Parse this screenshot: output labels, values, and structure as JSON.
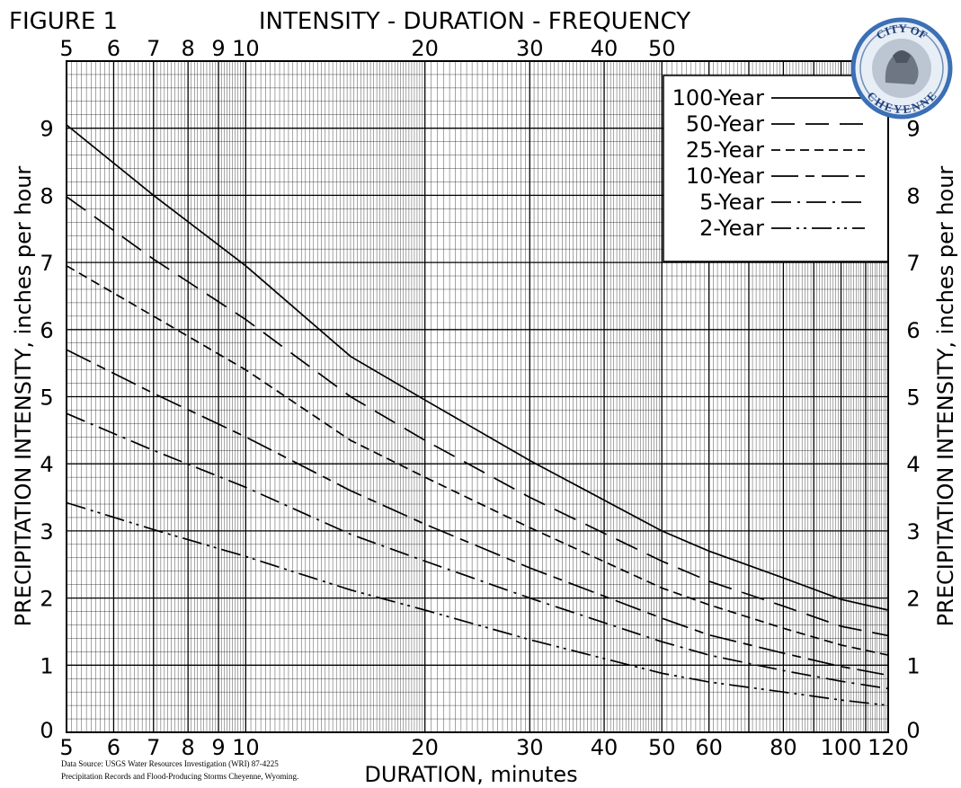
{
  "figure_label": "FIGURE 1",
  "title": "INTENSITY - DURATION - FREQUENCY",
  "seal_text": "CITY OF CHEYENNE",
  "source": {
    "line1": "Data Source: USGS Water Resources Investigation (WRI) 87-4225",
    "line2": "Precipitation Records and Flood-Producing Storms Cheyenne, Wyoming."
  },
  "chart_data": {
    "type": "line",
    "title": "INTENSITY - DURATION - FREQUENCY",
    "xlabel": "DURATION, minutes",
    "ylabel": "PRECIPITATION INTENSITY, inches per hour",
    "x_scale": "log",
    "xlim": [
      5,
      120
    ],
    "ylim": [
      0,
      10
    ],
    "grid": true,
    "legend_position": "top-right",
    "top_tick_labels": [
      "5",
      "6",
      "7",
      "8",
      "9",
      "10",
      "20",
      "30",
      "40",
      "50"
    ],
    "bottom_tick_labels": [
      "5",
      "6",
      "7",
      "8",
      "9",
      "10",
      "20",
      "30",
      "40",
      "50",
      "60",
      "80",
      "100",
      "120"
    ],
    "y_tick_labels": [
      "0",
      "1",
      "2",
      "3",
      "4",
      "5",
      "6",
      "7",
      "8",
      "9"
    ],
    "x": [
      5,
      7,
      10,
      15,
      20,
      30,
      50,
      60,
      80,
      100,
      120
    ],
    "series": [
      {
        "name": "100-Year",
        "dash": "solid",
        "values": [
          9.05,
          8.0,
          6.95,
          5.6,
          4.95,
          4.05,
          3.0,
          2.7,
          2.3,
          1.98,
          1.82
        ]
      },
      {
        "name": "50-Year",
        "dash": "long-dash",
        "values": [
          7.98,
          7.05,
          6.15,
          5.0,
          4.35,
          3.5,
          2.55,
          2.25,
          1.88,
          1.58,
          1.44
        ]
      },
      {
        "name": "25-Year",
        "dash": "short-dash",
        "values": [
          6.95,
          6.2,
          5.4,
          4.35,
          3.8,
          3.05,
          2.15,
          1.9,
          1.55,
          1.3,
          1.15
        ]
      },
      {
        "name": "10-Year",
        "dash": "long-short",
        "values": [
          5.7,
          5.05,
          4.4,
          3.6,
          3.1,
          2.45,
          1.7,
          1.45,
          1.18,
          0.98,
          0.85
        ]
      },
      {
        "name": "5-Year",
        "dash": "dash-dot",
        "values": [
          4.75,
          4.2,
          3.65,
          2.95,
          2.55,
          2.0,
          1.35,
          1.15,
          0.92,
          0.76,
          0.65
        ]
      },
      {
        "name": "2-Year",
        "dash": "dash-dot-dot",
        "values": [
          3.42,
          3.02,
          2.62,
          2.12,
          1.82,
          1.38,
          0.88,
          0.75,
          0.6,
          0.48,
          0.4
        ]
      }
    ]
  }
}
